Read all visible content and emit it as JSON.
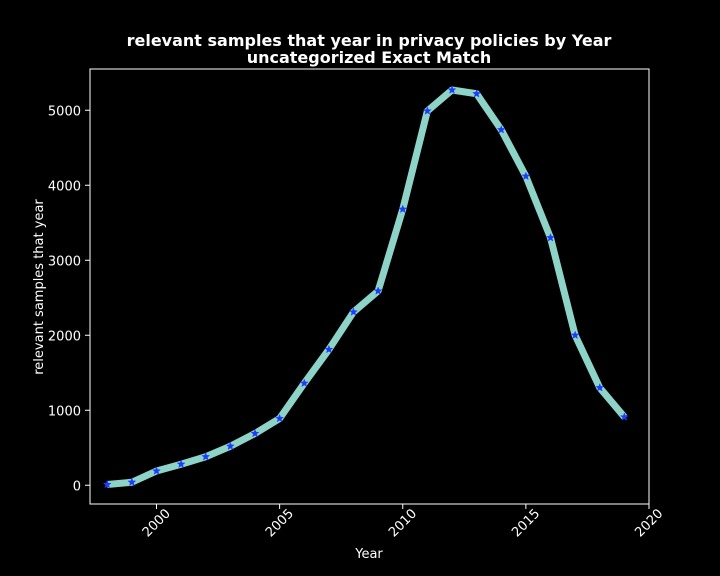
{
  "chart_data": {
    "type": "line",
    "title": [
      "relevant samples that year in privacy policies by Year",
      "uncategorized Exact Match"
    ],
    "xlabel": "Year",
    "ylabel": "relevant samples that year",
    "xlim": [
      1997.3,
      2020.0
    ],
    "ylim": [
      -250,
      5550
    ],
    "xticks": [
      2000,
      2005,
      2010,
      2015,
      2020
    ],
    "yticks": [
      0,
      1000,
      2000,
      3000,
      4000,
      5000
    ],
    "grid": false,
    "line_color": "#8dd3c7",
    "marker_color": "#1a3cff",
    "marker": "star",
    "series": [
      {
        "x": [
          1998,
          1999,
          2000,
          2001,
          2002,
          2003,
          2004,
          2005,
          2006,
          2007,
          2008,
          2009,
          2010,
          2011,
          2012,
          2013,
          2014,
          2015,
          2016,
          2017,
          2018,
          2019
        ],
        "values": [
          10,
          40,
          190,
          280,
          380,
          520,
          690,
          890,
          1360,
          1810,
          2310,
          2590,
          3680,
          4990,
          5270,
          5220,
          4740,
          4120,
          3300,
          2000,
          1300,
          910
        ]
      }
    ]
  }
}
